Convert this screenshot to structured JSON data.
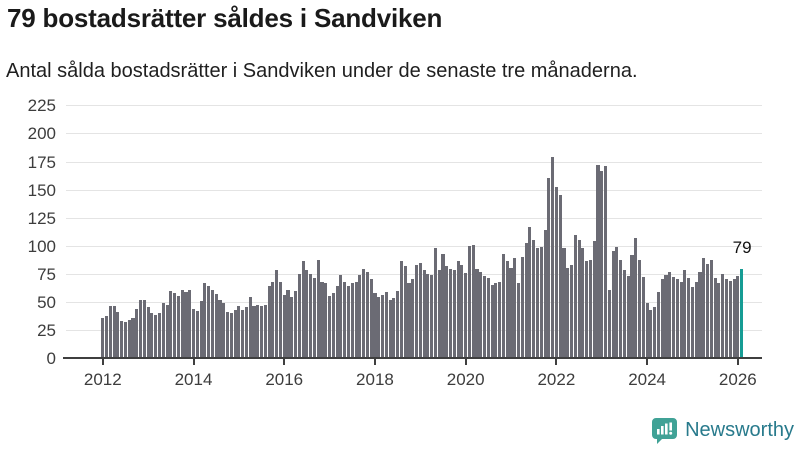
{
  "header": {
    "title": "79 bostadsrätter såldes i Sandviken",
    "subtitle": "Antal sålda bostadsrätter i Sandviken under de senaste tre månaderna."
  },
  "chart_data": {
    "type": "bar",
    "title": "79 bostadsrätter såldes i Sandviken",
    "subtitle": "Antal sålda bostadsrätter i Sandviken under de senaste tre månaderna.",
    "x_unit": "month",
    "x_range_start": "2012-01",
    "x_range_end": "2026-02",
    "y_ticks": [
      0,
      25,
      50,
      75,
      100,
      125,
      150,
      175,
      200,
      225
    ],
    "ylim": [
      0,
      230
    ],
    "x_tick_labels": [
      "2012",
      "2014",
      "2016",
      "2018",
      "2020",
      "2022",
      "2024",
      "2026"
    ],
    "grid": true,
    "legend": false,
    "bar_color": "#6b6b74",
    "highlight_color": "#169c94",
    "highlight_index": 169,
    "highlight_label": "79",
    "values": [
      36,
      37,
      46,
      46,
      41,
      33,
      32,
      34,
      36,
      44,
      52,
      52,
      45,
      40,
      38,
      40,
      49,
      47,
      60,
      58,
      55,
      61,
      59,
      61,
      44,
      42,
      51,
      67,
      64,
      61,
      57,
      52,
      49,
      41,
      40,
      43,
      46,
      43,
      45,
      54,
      46,
      47,
      46,
      47,
      64,
      68,
      78,
      68,
      56,
      61,
      54,
      60,
      75,
      86,
      78,
      75,
      71,
      87,
      68,
      67,
      55,
      58,
      64,
      74,
      68,
      64,
      67,
      68,
      74,
      79,
      77,
      70,
      58,
      54,
      56,
      59,
      52,
      53,
      60,
      86,
      82,
      67,
      70,
      83,
      85,
      78,
      75,
      74,
      98,
      78,
      93,
      82,
      79,
      78,
      86,
      83,
      76,
      100,
      101,
      79,
      77,
      73,
      71,
      65,
      67,
      68,
      93,
      86,
      80,
      89,
      67,
      90,
      102,
      117,
      105,
      98,
      99,
      114,
      160,
      179,
      152,
      145,
      98,
      80,
      83,
      110,
      105,
      98,
      86,
      87,
      104,
      172,
      167,
      171,
      61,
      95,
      99,
      87,
      78,
      73,
      92,
      107,
      87,
      72,
      49,
      43,
      45,
      59,
      70,
      74,
      77,
      72,
      70,
      68,
      78,
      71,
      63,
      68,
      77,
      89,
      84,
      87,
      71,
      67,
      75,
      70,
      69,
      70,
      73,
      79
    ]
  },
  "annotation": {
    "last_value_label": "79"
  },
  "footer": {
    "brand": "Newsworthy"
  },
  "colors": {
    "bar": "#6b6b74",
    "accent_teal": "#169c94",
    "logo_icon": "#40a296",
    "logo_text": "#287a8c",
    "grid": "#e4e4e4",
    "axis": "#3f3f3f",
    "text": "#1a1a1a"
  }
}
